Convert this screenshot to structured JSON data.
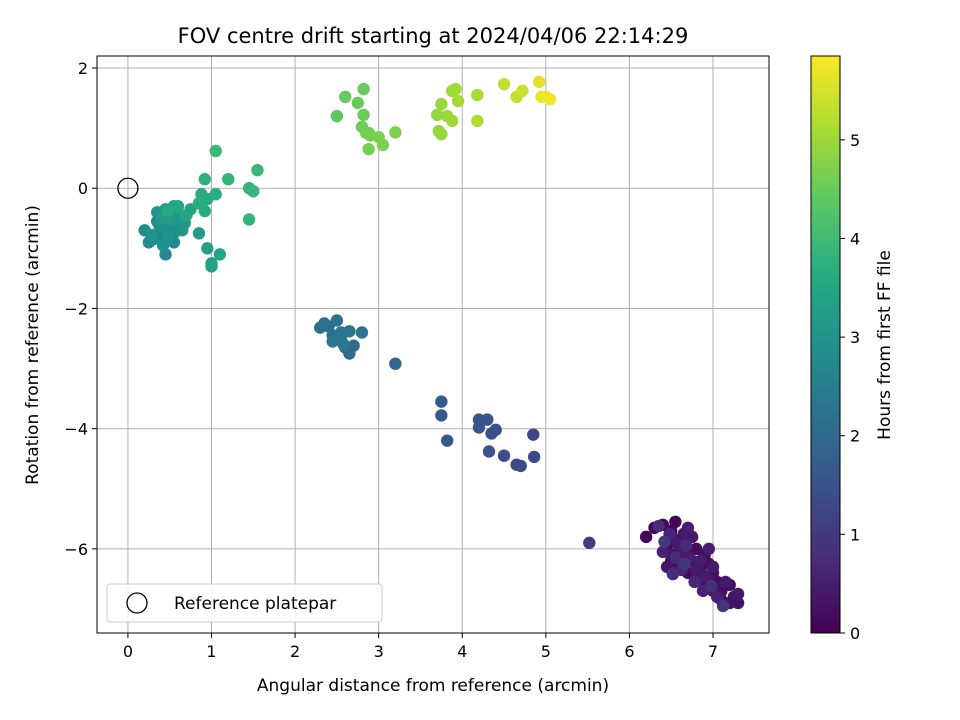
{
  "chart_data": {
    "type": "scatter",
    "title": "FOV centre drift starting at 2024/04/06 22:14:29",
    "xlabel": "Angular distance from reference (arcmin)",
    "ylabel": "Rotation from reference (arcmin)",
    "xlim": [
      -0.37,
      7.67
    ],
    "ylim": [
      -7.4,
      2.2
    ],
    "xticks": [
      0,
      1,
      2,
      3,
      4,
      5,
      6,
      7
    ],
    "yticks": [
      -6,
      -4,
      -2,
      0,
      2
    ],
    "grid": true,
    "colormap": "viridis",
    "colorbar": {
      "label": "Hours from first FF file",
      "range": [
        0,
        5.85
      ],
      "ticks": [
        0,
        1,
        2,
        3,
        4,
        5
      ]
    },
    "legend": {
      "placement": "lower-left",
      "entries": [
        {
          "label": "Reference platepar",
          "marker": "open-circle",
          "x": 0,
          "y": 0
        }
      ]
    },
    "points": [
      [
        6.2,
        -5.8,
        0.05
      ],
      [
        6.3,
        -5.65,
        0.06
      ],
      [
        6.4,
        -5.6,
        0.08
      ],
      [
        6.5,
        -5.7,
        0.07
      ],
      [
        6.55,
        -5.55,
        0.09
      ],
      [
        6.45,
        -5.95,
        0.1
      ],
      [
        6.6,
        -6.0,
        0.11
      ],
      [
        6.5,
        -6.2,
        0.12
      ],
      [
        6.6,
        -6.3,
        0.13
      ],
      [
        6.7,
        -6.1,
        0.14
      ],
      [
        6.65,
        -5.9,
        0.15
      ],
      [
        6.75,
        -6.2,
        0.16
      ],
      [
        6.8,
        -6.0,
        0.17
      ],
      [
        6.85,
        -6.3,
        0.18
      ],
      [
        6.7,
        -6.4,
        0.19
      ],
      [
        6.9,
        -6.1,
        0.2
      ],
      [
        6.95,
        -6.25,
        0.21
      ],
      [
        7.0,
        -6.4,
        0.22
      ],
      [
        6.9,
        -6.6,
        0.23
      ],
      [
        7.05,
        -6.55,
        0.24
      ],
      [
        7.1,
        -6.7,
        0.25
      ],
      [
        7.2,
        -6.6,
        0.26
      ],
      [
        7.25,
        -6.8,
        0.27
      ],
      [
        7.3,
        -6.9,
        0.28
      ],
      [
        7.2,
        -6.9,
        0.29
      ],
      [
        7.1,
        -6.85,
        0.3
      ],
      [
        7.0,
        -6.7,
        0.31
      ],
      [
        6.95,
        -6.5,
        0.32
      ],
      [
        6.8,
        -6.5,
        0.33
      ],
      [
        6.6,
        -6.2,
        0.34
      ],
      [
        6.5,
        -6.1,
        0.35
      ],
      [
        6.45,
        -6.3,
        0.36
      ],
      [
        6.55,
        -5.85,
        0.37
      ],
      [
        6.65,
        -5.75,
        0.38
      ],
      [
        6.75,
        -5.8,
        0.39
      ],
      [
        6.8,
        -6.35,
        0.4
      ],
      [
        7.0,
        -6.3,
        0.41
      ],
      [
        7.15,
        -6.55,
        0.42
      ],
      [
        7.3,
        -6.75,
        0.43
      ],
      [
        6.9,
        -6.45,
        0.44
      ],
      [
        6.62,
        -6.05,
        0.45
      ],
      [
        6.58,
        -5.92,
        0.46
      ],
      [
        6.72,
        -6.15,
        0.47
      ],
      [
        6.85,
        -6.2,
        0.48
      ],
      [
        6.95,
        -6.0,
        0.5
      ],
      [
        6.7,
        -5.65,
        0.52
      ],
      [
        6.4,
        -6.05,
        0.55
      ],
      [
        7.05,
        -6.8,
        0.58
      ],
      [
        6.88,
        -6.7,
        0.6
      ],
      [
        6.48,
        -5.75,
        0.62
      ],
      [
        6.62,
        -6.35,
        0.65
      ],
      [
        6.78,
        -6.55,
        0.68
      ],
      [
        6.55,
        -6.15,
        0.7
      ],
      [
        6.68,
        -5.95,
        0.72
      ],
      [
        6.35,
        -5.62,
        0.75
      ],
      [
        6.52,
        -6.42,
        0.78
      ],
      [
        6.98,
        -6.62,
        0.82
      ],
      [
        7.12,
        -6.95,
        0.86
      ],
      [
        6.66,
        -6.25,
        0.9
      ],
      [
        6.42,
        -5.88,
        0.95
      ],
      [
        5.52,
        -5.9,
        1.05
      ],
      [
        4.85,
        -4.1,
        1.25
      ],
      [
        4.86,
        -4.47,
        1.28
      ],
      [
        4.7,
        -4.62,
        1.32
      ],
      [
        4.65,
        -4.6,
        1.35
      ],
      [
        4.5,
        -4.45,
        1.38
      ],
      [
        4.4,
        -4.02,
        1.42
      ],
      [
        4.35,
        -4.08,
        1.45
      ],
      [
        4.32,
        -4.38,
        1.48
      ],
      [
        4.3,
        -3.85,
        1.5
      ],
      [
        4.2,
        -3.85,
        1.52
      ],
      [
        4.2,
        -3.98,
        1.55
      ],
      [
        3.82,
        -4.2,
        1.6
      ],
      [
        3.75,
        -3.78,
        1.65
      ],
      [
        3.75,
        -3.55,
        1.68
      ],
      [
        3.2,
        -2.92,
        1.9
      ],
      [
        2.7,
        -2.62,
        2.05
      ],
      [
        2.65,
        -2.75,
        2.08
      ],
      [
        2.6,
        -2.65,
        2.1
      ],
      [
        2.55,
        -2.5,
        2.12
      ],
      [
        2.45,
        -2.45,
        2.15
      ],
      [
        2.4,
        -2.3,
        2.18
      ],
      [
        2.35,
        -2.25,
        2.2
      ],
      [
        2.3,
        -2.32,
        2.22
      ],
      [
        2.5,
        -2.2,
        2.24
      ],
      [
        2.55,
        -2.4,
        2.26
      ],
      [
        2.65,
        -2.38,
        2.28
      ],
      [
        2.8,
        -2.4,
        2.3
      ],
      [
        2.45,
        -2.55,
        2.32
      ],
      [
        2.58,
        -2.6,
        2.35
      ],
      [
        0.4,
        -0.8,
        2.7
      ],
      [
        0.45,
        -1.1,
        2.72
      ],
      [
        0.55,
        -0.9,
        2.75
      ],
      [
        0.45,
        -0.7,
        2.78
      ],
      [
        0.35,
        -0.55,
        2.8
      ],
      [
        0.25,
        -0.9,
        2.82
      ],
      [
        0.2,
        -0.7,
        2.84
      ],
      [
        0.3,
        -0.85,
        2.86
      ],
      [
        0.5,
        -0.6,
        2.88
      ],
      [
        0.6,
        -0.65,
        2.9
      ],
      [
        0.55,
        -0.75,
        2.92
      ],
      [
        0.42,
        -0.95,
        2.94
      ],
      [
        0.38,
        -0.65,
        2.96
      ],
      [
        0.28,
        -0.78,
        2.98
      ],
      [
        0.48,
        -0.82,
        3.0
      ],
      [
        0.58,
        -0.55,
        3.02
      ],
      [
        0.52,
        -0.45,
        3.04
      ],
      [
        0.65,
        -0.7,
        3.06
      ],
      [
        0.35,
        -0.4,
        3.08
      ],
      [
        0.45,
        -0.35,
        3.1
      ],
      [
        0.6,
        -0.4,
        3.12
      ],
      [
        0.62,
        -0.5,
        3.14
      ],
      [
        0.5,
        -0.52,
        3.16
      ],
      [
        0.68,
        -0.58,
        3.18
      ],
      [
        0.4,
        -0.5,
        3.2
      ],
      [
        0.85,
        -0.75,
        3.25
      ],
      [
        0.95,
        -1.0,
        3.3
      ],
      [
        1.0,
        -1.3,
        3.35
      ],
      [
        1.0,
        -1.25,
        3.38
      ],
      [
        1.1,
        -1.1,
        3.4
      ],
      [
        0.55,
        -0.3,
        3.42
      ],
      [
        0.75,
        -0.35,
        3.45
      ],
      [
        0.7,
        -0.45,
        3.48
      ],
      [
        0.6,
        -0.3,
        3.5
      ],
      [
        0.48,
        -0.38,
        3.52
      ],
      [
        0.88,
        -0.1,
        3.6
      ],
      [
        0.95,
        -0.18,
        3.62
      ],
      [
        0.92,
        -0.38,
        3.64
      ],
      [
        1.05,
        -0.1,
        3.66
      ],
      [
        0.85,
        -0.25,
        3.68
      ],
      [
        0.92,
        0.15,
        3.75
      ],
      [
        1.2,
        0.15,
        3.8
      ],
      [
        1.45,
        -0.52,
        3.82
      ],
      [
        1.45,
        0.0,
        3.84
      ],
      [
        1.5,
        -0.05,
        3.86
      ],
      [
        1.55,
        0.3,
        3.9
      ],
      [
        1.05,
        0.62,
        3.92
      ],
      [
        2.5,
        1.2,
        4.4
      ],
      [
        2.6,
        1.52,
        4.45
      ],
      [
        2.75,
        1.42,
        4.48
      ],
      [
        2.82,
        1.65,
        4.5
      ],
      [
        2.82,
        1.22,
        4.52
      ],
      [
        2.8,
        1.02,
        4.55
      ],
      [
        2.85,
        0.92,
        4.58
      ],
      [
        2.88,
        0.92,
        4.6
      ],
      [
        2.9,
        0.88,
        4.62
      ],
      [
        2.88,
        0.65,
        4.64
      ],
      [
        3.0,
        0.85,
        4.66
      ],
      [
        3.05,
        0.72,
        4.68
      ],
      [
        3.2,
        0.93,
        4.7
      ],
      [
        3.7,
        1.22,
        4.9
      ],
      [
        3.72,
        0.95,
        4.92
      ],
      [
        3.75,
        0.9,
        4.94
      ],
      [
        3.75,
        1.4,
        4.96
      ],
      [
        3.82,
        1.2,
        4.98
      ],
      [
        3.88,
        1.12,
        5.0
      ],
      [
        3.88,
        1.62,
        5.02
      ],
      [
        3.92,
        1.65,
        5.04
      ],
      [
        3.95,
        1.45,
        5.06
      ],
      [
        4.18,
        1.55,
        5.1
      ],
      [
        4.18,
        1.12,
        5.12
      ],
      [
        4.5,
        1.73,
        5.3
      ],
      [
        4.65,
        1.52,
        5.35
      ],
      [
        4.72,
        1.62,
        5.4
      ],
      [
        4.92,
        1.77,
        5.6
      ],
      [
        4.95,
        1.52,
        5.65
      ],
      [
        5.0,
        1.52,
        5.7
      ],
      [
        5.05,
        1.48,
        5.75
      ]
    ]
  }
}
